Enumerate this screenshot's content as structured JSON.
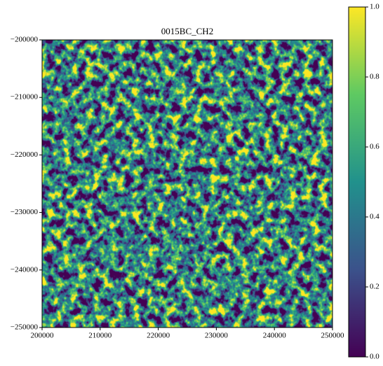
{
  "chart_data": {
    "type": "heatmap",
    "title": "0015BC_CH2",
    "xlim": [
      200000,
      250000
    ],
    "xticks": [
      200000,
      210000,
      220000,
      230000,
      240000,
      250000
    ],
    "ylim": [
      -250000,
      -200000
    ],
    "yticks": [
      {
        "value": -250000,
        "label": "−250000"
      },
      {
        "value": -240000,
        "label": "−240000"
      },
      {
        "value": -230000,
        "label": "−230000"
      },
      {
        "value": -220000,
        "label": "−220000"
      },
      {
        "value": -210000,
        "label": "−210000"
      },
      {
        "value": -200000,
        "label": "−200000"
      }
    ],
    "clim": [
      0,
      1
    ],
    "cticks": [
      {
        "value": 0,
        "label": "0.0"
      },
      0.2,
      0.4,
      0.6,
      0.8,
      {
        "value": 1,
        "label": "1.0"
      }
    ],
    "colormap": [
      "#440154",
      "#3b528b",
      "#21918c",
      "#5ec962",
      "#fde725"
    ]
  }
}
